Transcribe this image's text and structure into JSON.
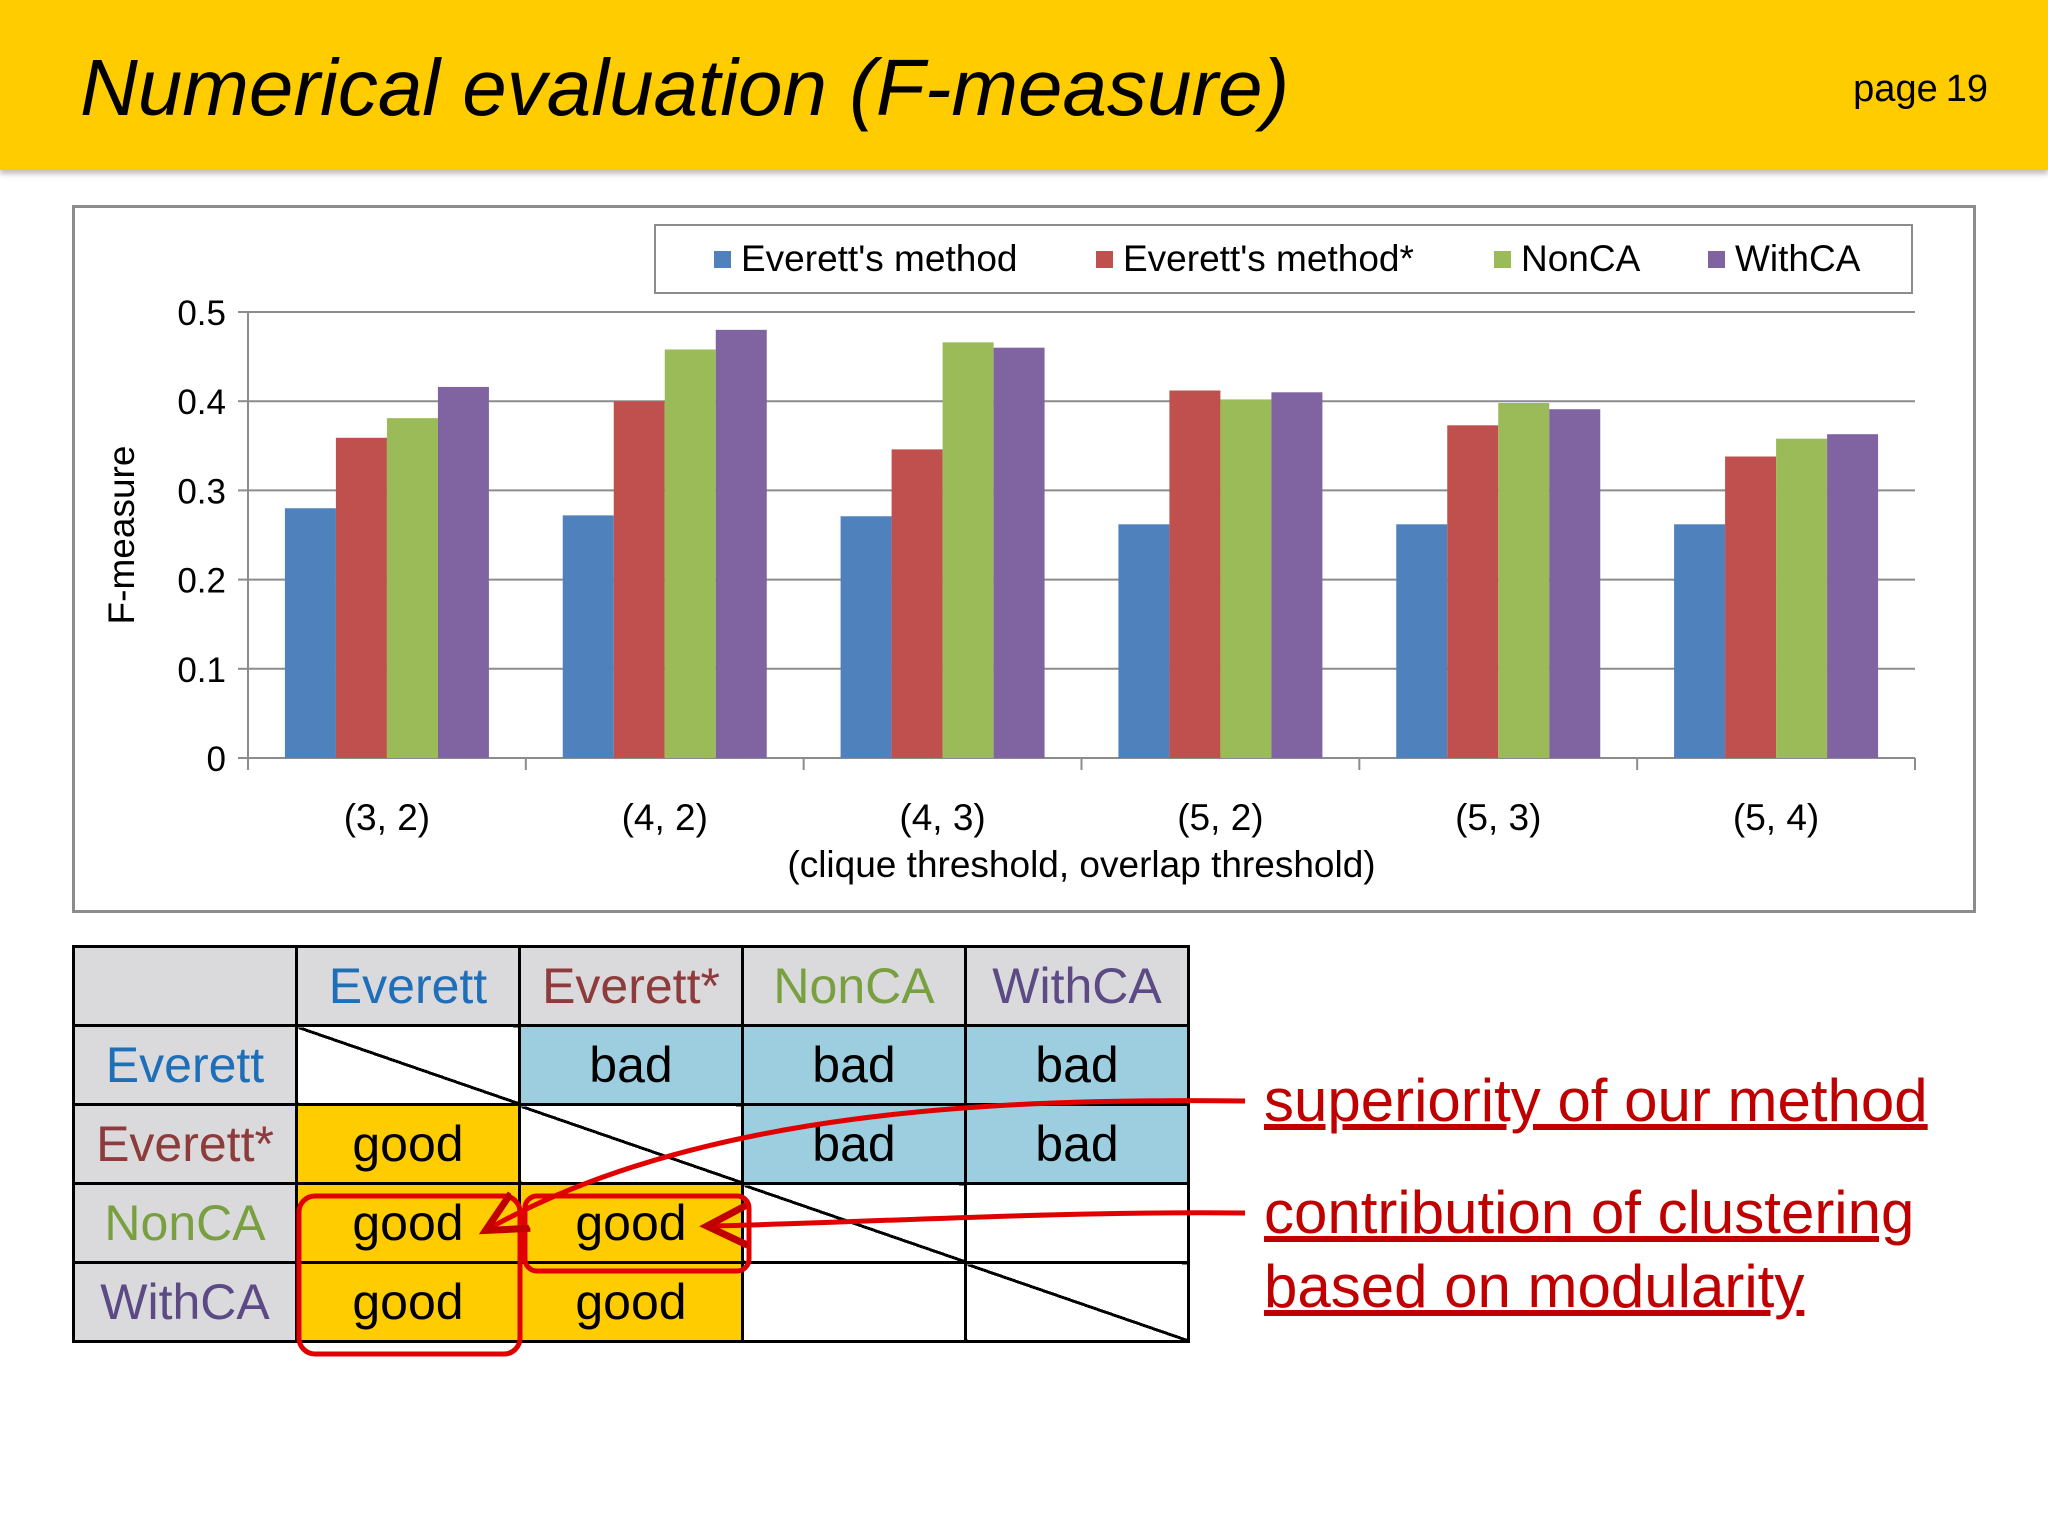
{
  "header": {
    "title": "Numerical evaluation (F-measure)",
    "page_label": "page",
    "page_number": "19"
  },
  "chart_data": {
    "type": "bar",
    "categories": [
      "(3, 2)",
      "(4, 2)",
      "(4, 3)",
      "(5, 2)",
      "(5, 3)",
      "(5, 4)"
    ],
    "series": [
      {
        "name": "Everett's method",
        "color": "#4f81bd",
        "values": [
          0.28,
          0.272,
          0.271,
          0.262,
          0.262,
          0.262
        ]
      },
      {
        "name": "Everett's method*",
        "color": "#c0504d",
        "values": [
          0.359,
          0.4,
          0.346,
          0.412,
          0.373,
          0.338
        ]
      },
      {
        "name": "NonCA",
        "color": "#9bbb59",
        "values": [
          0.381,
          0.458,
          0.466,
          0.402,
          0.398,
          0.358
        ]
      },
      {
        "name": "WithCA",
        "color": "#8064a2",
        "values": [
          0.416,
          0.48,
          0.46,
          0.41,
          0.391,
          0.363
        ]
      }
    ],
    "xlabel": "(clique threshold, overlap threshold)",
    "ylabel": "F-measure",
    "ylim": [
      0,
      0.5
    ],
    "yticks": [
      "0",
      "0.1",
      "0.2",
      "0.3",
      "0.4",
      "0.5"
    ],
    "grid": true,
    "legend_position": "top"
  },
  "table": {
    "col_headers": [
      "Everett",
      "Everett*",
      "NonCA",
      "WithCA"
    ],
    "rows": [
      {
        "label": "Everett",
        "cells": [
          "",
          "bad",
          "bad",
          "bad"
        ]
      },
      {
        "label": "Everett*",
        "cells": [
          "good",
          "",
          "bad",
          "bad"
        ]
      },
      {
        "label": "NonCA",
        "cells": [
          "good",
          "good",
          "",
          ""
        ]
      },
      {
        "label": "WithCA",
        "cells": [
          "good",
          "good",
          "",
          ""
        ]
      }
    ],
    "colors": {
      "header_bg": "#dad9dc",
      "bad_bg": "#9ccedf",
      "good_bg": "#ffcc00"
    }
  },
  "annotations": {
    "superiority": "superiority of our method",
    "contribution_line1": "contribution of clustering",
    "contribution_line2": "based on modularity",
    "color": "#c00000"
  }
}
